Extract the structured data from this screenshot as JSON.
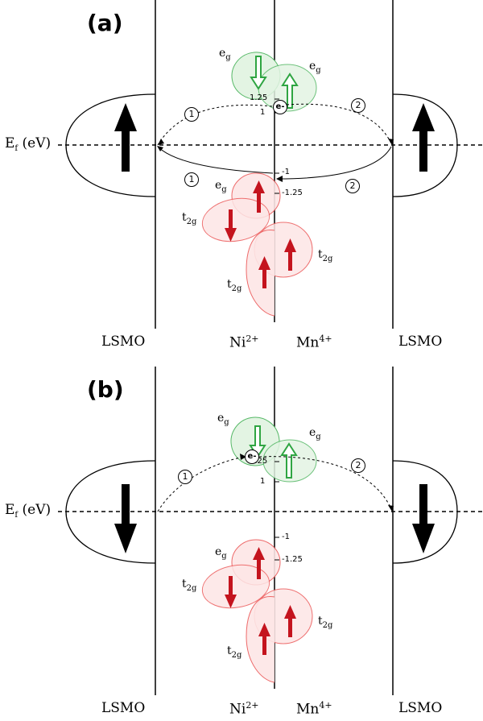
{
  "panels": [
    {
      "label": "(a)",
      "lsmo_spin": "up",
      "electron_label": "e-",
      "eg_ni_arrow": "down",
      "eg_mn_arrow": "up",
      "ticks": [
        "1.25",
        "1",
        "-1",
        "-1.25"
      ],
      "paths": [
        "1",
        "2",
        "1",
        "2"
      ]
    },
    {
      "label": "(b)",
      "lsmo_spin": "down",
      "electron_label": "e-",
      "eg_ni_arrow": "down",
      "eg_mn_arrow": "up",
      "ticks": [
        "1.25",
        "1",
        "-1",
        "-1.25"
      ],
      "paths": [
        "1",
        "2"
      ]
    }
  ],
  "ef_label": {
    "main": "E",
    "sub": "f",
    "unit": " (eV)"
  },
  "orbital_labels": {
    "eg_main": "e",
    "eg_sub": "g",
    "t2g_main": "t",
    "t2g_sub": "2g"
  },
  "bottom_labels": {
    "lsmo_left": "LSMO",
    "ni": "Ni",
    "ni_charge": "2+",
    "mn": "Mn",
    "mn_charge": "4+",
    "lsmo_right": "LSMO"
  },
  "colors": {
    "eg_fill": "#e3f4e3",
    "eg_stroke": "#55b866",
    "t2g_fill": "#fde6e6",
    "t2g_stroke": "#ec5a5a",
    "spin_red": "#c4141e",
    "spin_green": "#2fa542"
  }
}
